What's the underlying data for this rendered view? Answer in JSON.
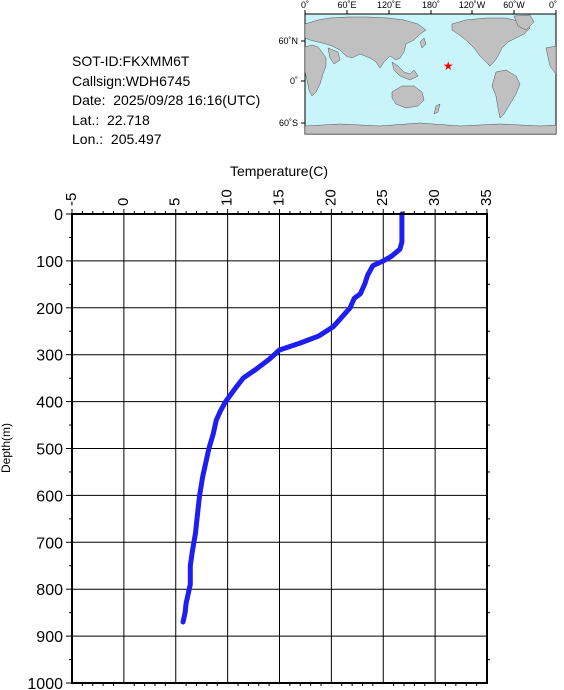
{
  "info": {
    "sot_id": "SOT-ID:FKXMM6T",
    "callsign": "Callsign:WDH6745",
    "date": "Date:  2025/09/28 16:16(UTC)",
    "lat": "Lat.:  22.718",
    "lon": "Lon.:  205.497"
  },
  "map": {
    "top_labels": [
      "0˚",
      "60˚E",
      "120˚E",
      "180˚",
      "120˚W",
      "60˚W",
      "0˚"
    ],
    "left_labels": [
      "60˚N",
      "0˚",
      "60˚S"
    ],
    "ocean_color": "#c8f4fa",
    "land_color": "#c0c0c0",
    "marker_color": "#ff0000",
    "marker_lon": 205.497,
    "marker_lat": 22.718
  },
  "chart_data": {
    "type": "line",
    "xlabel": "Temperature(C)",
    "ylabel": "Depth(m)",
    "xlim": [
      -5,
      35
    ],
    "ylim": [
      1000,
      0
    ],
    "x_ticks": [
      "-5",
      "0",
      "5",
      "10",
      "15",
      "20",
      "25",
      "30",
      "35"
    ],
    "y_ticks": [
      "0",
      "100",
      "200",
      "300",
      "400",
      "500",
      "600",
      "700",
      "800",
      "900",
      "1000"
    ],
    "grid": true,
    "line_color": "#1e1ef0",
    "series": [
      {
        "temperature": [
          26.8,
          26.8,
          26.8,
          26.6,
          25.8,
          25.0,
          24.0,
          23.5,
          23.2,
          22.8,
          22.2,
          21.8,
          21.0,
          20.2,
          18.8,
          17.0,
          15.0,
          14.0,
          12.8,
          11.5,
          10.8,
          10.3,
          9.8,
          9.3,
          8.9,
          8.6,
          8.2,
          7.9,
          7.6,
          7.3,
          7.1,
          6.9,
          6.6,
          6.4,
          6.4,
          6.3,
          6.2,
          6.0,
          5.9,
          5.8,
          5.7
        ],
        "depth": [
          0,
          30,
          60,
          75,
          90,
          100,
          110,
          130,
          150,
          170,
          180,
          200,
          220,
          240,
          260,
          275,
          290,
          310,
          330,
          350,
          370,
          385,
          400,
          420,
          440,
          470,
          500,
          530,
          560,
          600,
          640,
          680,
          720,
          750,
          790,
          800,
          810,
          830,
          850,
          860,
          870
        ]
      }
    ]
  }
}
